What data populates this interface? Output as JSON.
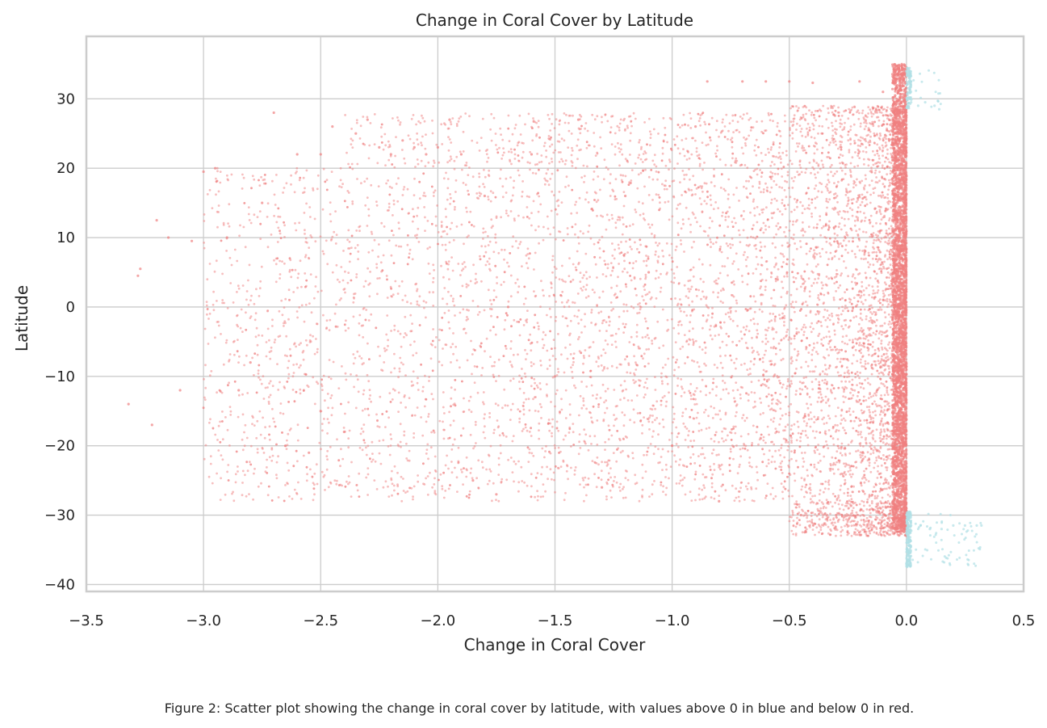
{
  "chart_data": {
    "type": "scatter",
    "title": "Change in Coral Cover by Latitude",
    "xlabel": "Change in Coral Cover",
    "ylabel": "Latitude",
    "xlim": [
      -3.5,
      0.5
    ],
    "ylim": [
      -41,
      39
    ],
    "xticks": [
      -3.5,
      -3.0,
      -2.5,
      -2.0,
      -1.5,
      -1.0,
      -0.5,
      0.0,
      0.5
    ],
    "xtick_labels": [
      "−3.5",
      "−3.0",
      "−2.5",
      "−2.0",
      "−1.5",
      "−1.0",
      "−0.5",
      "0.0",
      "0.5"
    ],
    "yticks": [
      30,
      20,
      10,
      0,
      -10,
      -20,
      -30,
      -40
    ],
    "ytick_labels": [
      "30",
      "20",
      "10",
      "0",
      "−10",
      "−20",
      "−30",
      "−40"
    ],
    "grid": true,
    "series": [
      {
        "color": "#f08080",
        "points_description_hint": "negative",
        "points": [
          [
            -3.32,
            -14
          ],
          [
            -3.28,
            4.5
          ],
          [
            -3.27,
            5.5
          ],
          [
            -3.22,
            -17
          ],
          [
            -3.2,
            12.5
          ],
          [
            -3.15,
            10
          ],
          [
            -3.1,
            -12
          ],
          [
            -3.05,
            9.5
          ],
          [
            -3.0,
            19.5
          ],
          [
            -2.95,
            20
          ],
          [
            -2.9,
            10
          ],
          [
            -2.85,
            -12
          ],
          [
            -2.8,
            -8
          ],
          [
            -2.75,
            15
          ],
          [
            -2.7,
            28
          ],
          [
            -2.65,
            -20
          ],
          [
            -2.6,
            22
          ],
          [
            -2.55,
            -21
          ],
          [
            -2.5,
            22
          ],
          [
            -2.45,
            26
          ],
          [
            -2.4,
            -18
          ],
          [
            -2.35,
            25
          ],
          [
            -2.3,
            27
          ],
          [
            -2.25,
            23
          ],
          [
            -2.2,
            22
          ],
          [
            -2.15,
            24
          ],
          [
            -2.1,
            23
          ],
          [
            -2.05,
            22
          ],
          [
            -2.0,
            23
          ],
          [
            -1.95,
            27
          ],
          [
            -1.9,
            22
          ],
          [
            -1.85,
            -25
          ],
          [
            -1.8,
            16
          ],
          [
            -1.75,
            -27
          ],
          [
            -1.7,
            0
          ],
          [
            -1.6,
            22
          ],
          [
            -1.5,
            -10
          ],
          [
            -1.4,
            27
          ],
          [
            -1.3,
            -26
          ],
          [
            -1.2,
            16
          ],
          [
            -1.1,
            5
          ],
          [
            -1.0,
            -20
          ],
          [
            -0.9,
            26
          ],
          [
            -0.85,
            32.5
          ],
          [
            -0.8,
            -28
          ],
          [
            -0.7,
            32.5
          ],
          [
            -0.6,
            32.5
          ],
          [
            -0.5,
            32.5
          ],
          [
            -0.45,
            -30
          ],
          [
            -0.4,
            32.3
          ],
          [
            -0.3,
            -30
          ],
          [
            -0.2,
            32.5
          ],
          [
            -0.1,
            31
          ],
          [
            -0.05,
            -32
          ],
          [
            -0.02,
            35
          ]
        ]
      },
      {
        "color": "#b0e0e6",
        "points_description_hint": "positive",
        "points": [
          [
            0.0,
            34
          ],
          [
            0.02,
            29.5
          ],
          [
            0.05,
            29
          ],
          [
            0.08,
            29.5
          ],
          [
            0.12,
            29
          ],
          [
            0.14,
            28.5
          ],
          [
            0.0,
            -37
          ],
          [
            0.02,
            -31.5
          ],
          [
            0.06,
            -31.5
          ],
          [
            0.1,
            -32
          ],
          [
            0.15,
            -32
          ],
          [
            0.2,
            -31.5
          ],
          [
            0.25,
            -31.5
          ],
          [
            0.3,
            -31.5
          ],
          [
            0.32,
            -31.5
          ]
        ]
      }
    ]
  },
  "caption": "Figure 2: Scatter plot showing the change in coral cover by latitude, with values above 0 in blue and below 0 in red."
}
